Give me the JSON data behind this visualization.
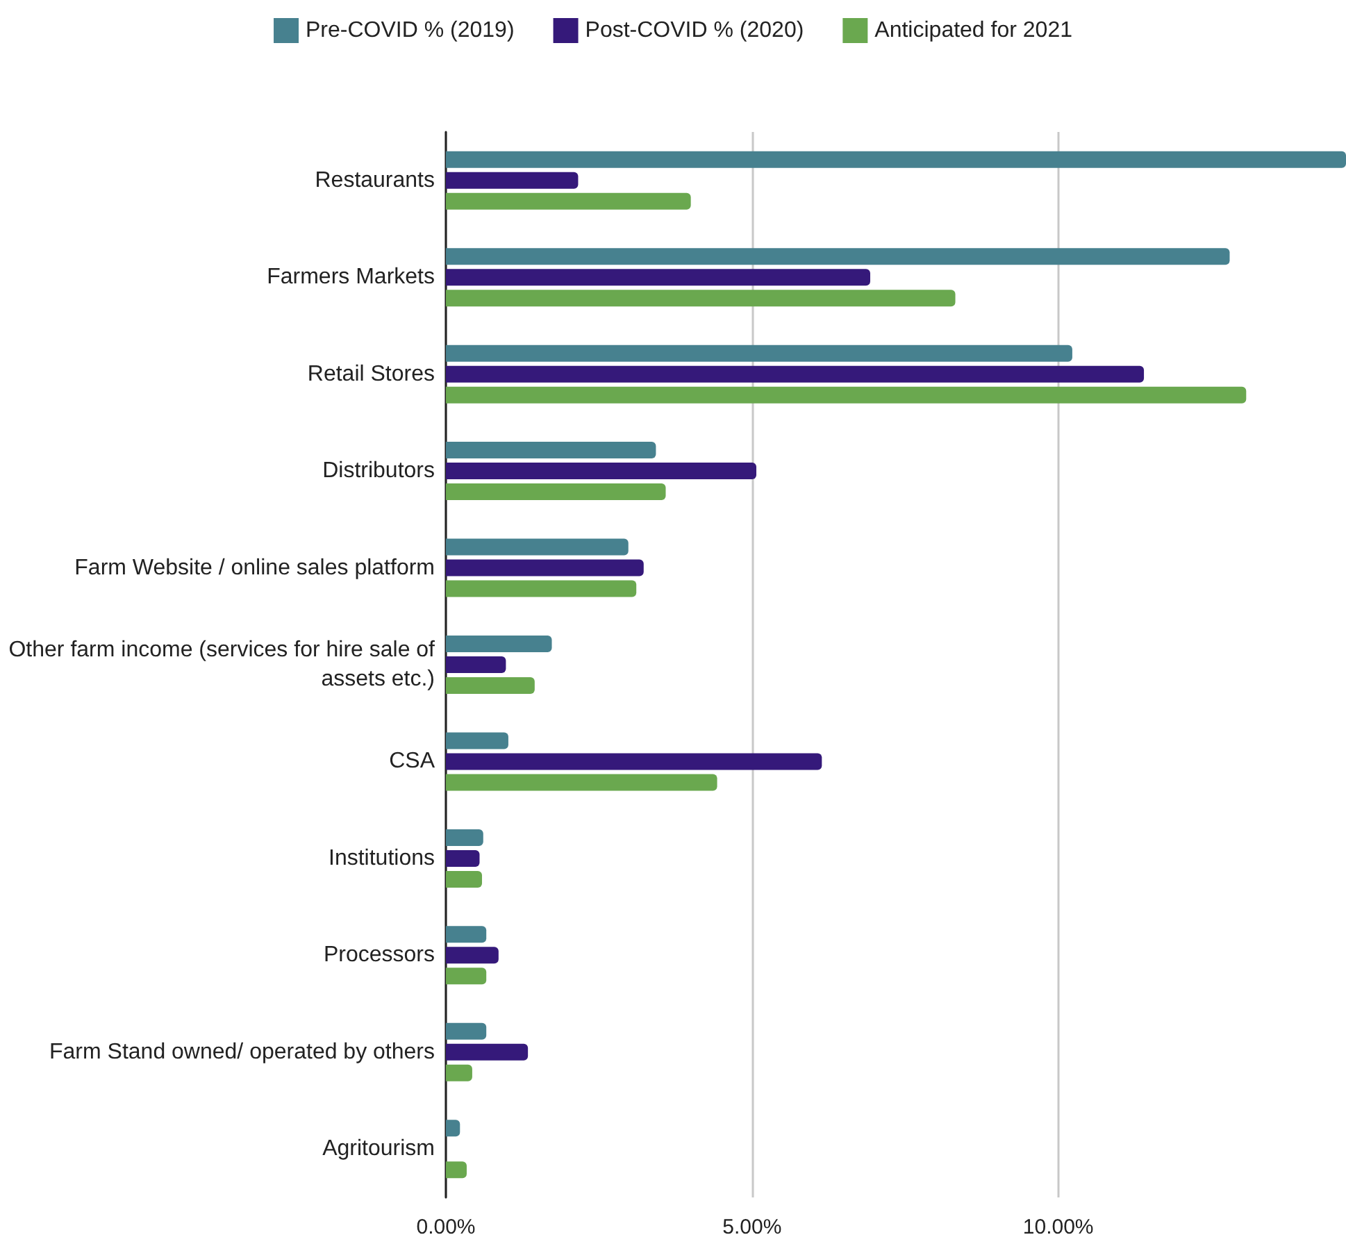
{
  "chart_data": {
    "type": "bar",
    "orientation": "horizontal",
    "categories": [
      "Restaurants",
      "Farmers Markets",
      "Retail Stores",
      "Distributors",
      "Farm Website / online sales platform",
      "Other farm income (services for hire sale of assets etc.)",
      "CSA",
      "Institutions",
      "Processors",
      "Farm Stand owned/ operated by others",
      "Agritourism"
    ],
    "series": [
      {
        "name": "Pre-COVID % (2019)",
        "color": "#47818f",
        "values": [
          14.7,
          12.8,
          10.23,
          3.43,
          2.98,
          1.73,
          1.02,
          0.61,
          0.66,
          0.66,
          0.23
        ]
      },
      {
        "name": "Post-COVID % (2020)",
        "color": "#35197a",
        "values": [
          2.16,
          6.93,
          11.4,
          5.07,
          3.23,
          0.98,
          6.14,
          0.55,
          0.86,
          1.34,
          0
        ]
      },
      {
        "name": "Anticipated for 2021",
        "color": "#6aa84f",
        "values": [
          4.0,
          8.32,
          13.07,
          3.59,
          3.11,
          1.45,
          4.43,
          0.59,
          0.66,
          0.43,
          0.34
        ]
      }
    ],
    "xlim": [
      0,
      14.7
    ],
    "xticks": [
      {
        "value": 0,
        "label": "0.00%"
      },
      {
        "value": 5,
        "label": "5.00%"
      },
      {
        "value": 10,
        "label": "10.00%"
      }
    ],
    "grid": "x",
    "legend": "top"
  }
}
